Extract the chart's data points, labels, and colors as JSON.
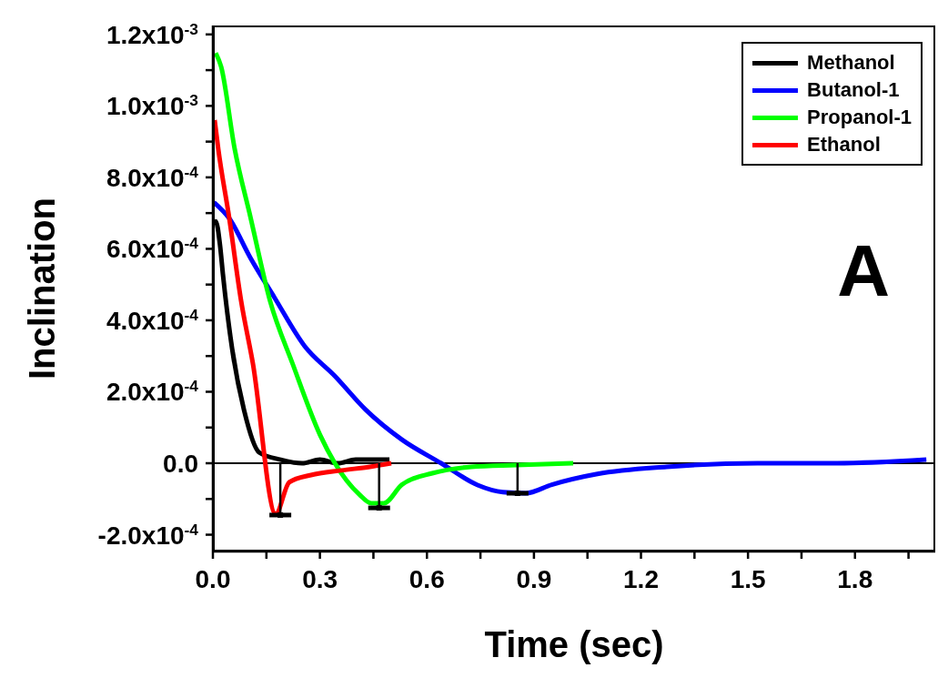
{
  "chart_data": {
    "type": "line",
    "xlabel": "Time (sec)",
    "ylabel": "Inclination",
    "xlim": [
      0,
      2.025
    ],
    "ylim": [
      -0.000247,
      0.001225
    ],
    "xticks": [
      {
        "value": 0,
        "label": "0.0"
      },
      {
        "value": 0.15,
        "label": null
      },
      0.3,
      {
        "value": 0.45,
        "label": null
      },
      0.6,
      {
        "value": 0.75,
        "label": null
      },
      0.9,
      {
        "value": 1.05,
        "label": null
      },
      1.2,
      {
        "value": 1.35,
        "label": null
      },
      1.5,
      {
        "value": 1.65,
        "label": null
      },
      1.8,
      {
        "value": 1.95,
        "label": null
      }
    ],
    "yticks": [
      {
        "value": -0.0002,
        "label": "-2.0x10$^{-4}$"
      },
      {
        "value": -0.0001,
        "label": null
      },
      {
        "value": 0,
        "label": "0.0"
      },
      {
        "value": 0.0001,
        "label": null
      },
      {
        "value": 0.0002,
        "label": "2.0x10$^{-4}$"
      },
      {
        "value": 0.0003,
        "label": null
      },
      {
        "value": 0.0004,
        "label": "4.0x10$^{-4}$"
      },
      {
        "value": 0.0005,
        "label": null
      },
      {
        "value": 0.0006,
        "label": "6.0x10$^{-4}$"
      },
      {
        "value": 0.0007,
        "label": null
      },
      {
        "value": 0.0008,
        "label": "8.0x10$^{-4}$"
      },
      {
        "value": 0.0009,
        "label": null
      },
      {
        "value": 0.001,
        "label": "1.0x10$^{-3}$"
      },
      {
        "value": 0.0011,
        "label": null
      },
      {
        "value": 0.0012,
        "label": "1.2x10$^{-3}$"
      }
    ],
    "grid": false,
    "legend": "top right",
    "marker": "none",
    "line_style": "solid",
    "ref_lines": [
      {
        "axis": "y",
        "value": 0,
        "color": "#000000"
      }
    ],
    "annotations": [
      "A"
    ],
    "series": [
      {
        "name": "Methanol",
        "color": "#000000",
        "x": [
          0.005,
          0.008,
          0.02,
          0.028,
          0.054,
          0.087,
          0.13,
          0.19,
          0.25,
          0.3,
          0.35,
          0.4,
          0.45,
          0.495
        ],
        "values": [
          0.00067,
          0.000677,
          0.00061,
          0.00053,
          0.00032,
          0.00015,
          3e-05,
          1e-05,
          0,
          1e-05,
          0,
          1e-05,
          1e-05,
          1e-05
        ]
      },
      {
        "name": "Butanol-1",
        "color": "#0000ff",
        "x": [
          0.003,
          0.046,
          0.105,
          0.173,
          0.257,
          0.342,
          0.428,
          0.53,
          0.64,
          0.742,
          0.813,
          0.877,
          0.95,
          1.078,
          1.272,
          1.527,
          1.75,
          2.0
        ],
        "values": [
          0.00073,
          0.000685,
          0.000575,
          0.000463,
          0.000328,
          0.000244,
          0.00015,
          6.6e-05,
          0,
          -6.1e-05,
          -8.1e-05,
          -8.4e-05,
          -6e-05,
          -3e-05,
          -1e-05,
          0,
          0,
          1e-05
        ]
      },
      {
        "name": "Propanol-1",
        "color": "#00ff00",
        "x": [
          0.008,
          0.023,
          0.061,
          0.105,
          0.16,
          0.224,
          0.3,
          0.342,
          0.41,
          0.444,
          0.479,
          0.53,
          0.615,
          0.724,
          0.85,
          1.01
        ],
        "values": [
          0.001148,
          0.00111,
          0.00088,
          0.00069,
          0.000455,
          0.000277,
          8e-05,
          0,
          -8.7e-05,
          -0.000112,
          -0.000112,
          -6e-05,
          -2.8e-05,
          -1e-05,
          -5e-06,
          0
        ]
      },
      {
        "name": "Ethanol",
        "color": "#ff0000",
        "x": [
          0.005,
          0.015,
          0.046,
          0.079,
          0.112,
          0.176,
          0.214,
          0.275,
          0.36,
          0.44,
          0.5
        ],
        "values": [
          0.00096,
          0.00088,
          0.000685,
          0.000455,
          0.00028,
          -0.000142,
          -5.3e-05,
          -3.3e-05,
          -2e-05,
          -1e-05,
          0
        ]
      },
      {
        "type": "scatter",
        "marker": "square",
        "color": "#000000",
        "x": [
          0.189,
          0.466,
          0.854
        ],
        "values": [
          -0.000145,
          -0.000125,
          -8.4e-05
        ],
        "errors": [
          [
            -0.000145,
            0
          ],
          [
            -0.000125,
            0
          ],
          [
            -8.4e-05,
            0
          ]
        ]
      }
    ]
  }
}
